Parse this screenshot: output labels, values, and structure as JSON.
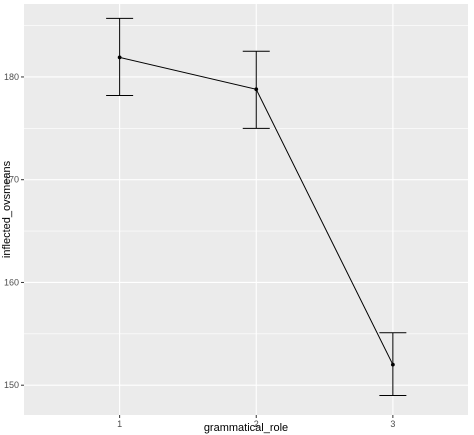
{
  "chart_data": {
    "type": "line",
    "title": "",
    "xlabel": "grammatical_role",
    "ylabel": "inflected_ovsmeans",
    "x_ticks": [
      "1",
      "2",
      "3"
    ],
    "y_ticks": [
      150,
      160,
      170,
      180
    ],
    "xlim": [
      0.3,
      3.55
    ],
    "ylim": [
      147.1,
      187.1
    ],
    "grid": true,
    "series": [
      {
        "x": [
          1,
          2,
          3
        ],
        "y": [
          181.9,
          178.8,
          152.0
        ],
        "ymin": [
          178.2,
          175.0,
          149.0
        ],
        "ymax": [
          185.7,
          182.5,
          155.1
        ]
      }
    ],
    "colors": {
      "panel_background": "#ebebeb",
      "grid_major": "#ffffff",
      "line": "#000000",
      "tick_text": "#4d4d4d"
    }
  }
}
